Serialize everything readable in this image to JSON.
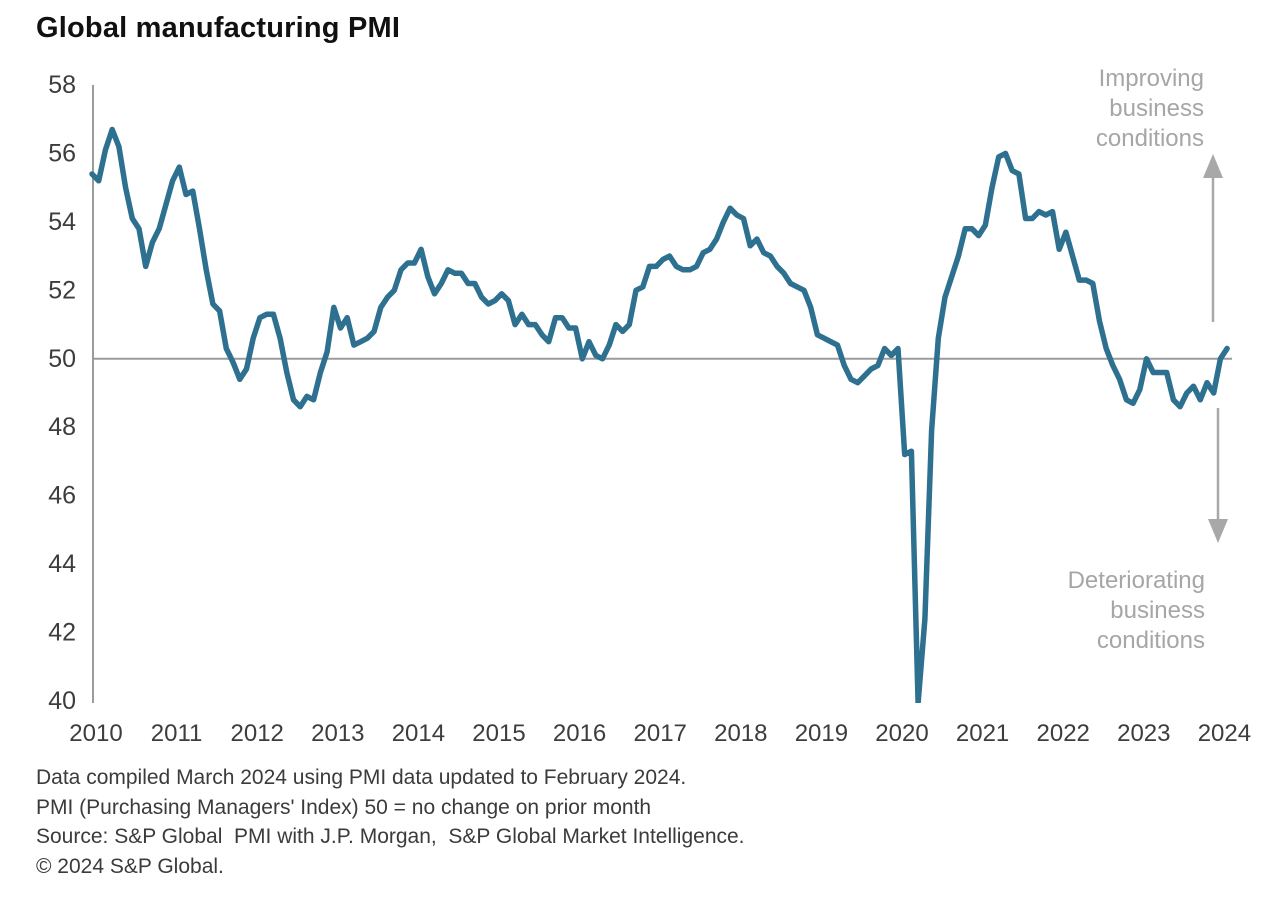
{
  "title": "Global manufacturing PMI",
  "annotations": {
    "improving": "Improving\nbusiness\nconditions",
    "deteriorating": "Deteriorating\nbusiness\nconditions"
  },
  "footer": {
    "line1": "Data compiled March 2024 using PMI data updated to February 2024.",
    "line2": "PMI (Purchasing Managers' Index) 50 = no change on prior month",
    "line3": "Source: S&P Global  PMI with J.P. Morgan,  S&P Global Market Intelligence.",
    "line4": "© 2024 S&P Global."
  },
  "colors": {
    "line": "#2e708f",
    "axis": "#9b9b9b",
    "gridline": "#9b9b9b",
    "arrow": "#a8a8a8",
    "annotation": "#a6a6a6",
    "title": "#111111",
    "tick_label": "#3d3d3d",
    "footer_text": "#3b3b3b"
  },
  "chart_data": {
    "type": "line",
    "title": "Global manufacturing PMI",
    "xlabel": "",
    "ylabel": "PMI (Purchasing Managers' Index), 50 = no change on prior month",
    "x_range": "Jan 2010 - Feb 2024",
    "frequency": "monthly",
    "ylim": [
      40,
      58
    ],
    "y_ticks": [
      58,
      56,
      54,
      52,
      50,
      48,
      46,
      44,
      42,
      40
    ],
    "x_tick_labels": [
      "2010",
      "2011",
      "2012",
      "2013",
      "2014",
      "2015",
      "2016",
      "2017",
      "2018",
      "2019",
      "2020",
      "2021",
      "2022",
      "2023",
      "2024"
    ],
    "baseline_value": 50,
    "grid": "single horizontal reference line at 50",
    "legend_position": "none",
    "series": [
      {
        "name": "Global Manufacturing PMI",
        "start": "2010-01",
        "end": "2024-02",
        "values": [
          55.4,
          55.2,
          56.1,
          56.7,
          56.2,
          55.0,
          54.1,
          53.8,
          52.7,
          53.4,
          53.8,
          54.5,
          55.2,
          55.6,
          54.8,
          54.9,
          53.8,
          52.6,
          51.6,
          51.4,
          50.3,
          49.9,
          49.4,
          49.7,
          50.6,
          51.2,
          51.3,
          51.3,
          50.6,
          49.6,
          48.8,
          48.6,
          48.9,
          48.8,
          49.6,
          50.2,
          51.5,
          50.9,
          51.2,
          50.4,
          50.5,
          50.6,
          50.8,
          51.5,
          51.8,
          52.0,
          52.6,
          52.8,
          52.8,
          53.2,
          52.4,
          51.9,
          52.2,
          52.6,
          52.5,
          52.5,
          52.2,
          52.2,
          51.8,
          51.6,
          51.7,
          51.9,
          51.7,
          51.0,
          51.3,
          51.0,
          51.0,
          50.7,
          50.5,
          51.2,
          51.2,
          50.9,
          50.9,
          50.0,
          50.5,
          50.1,
          50.0,
          50.4,
          51.0,
          50.8,
          51.0,
          52.0,
          52.1,
          52.7,
          52.7,
          52.9,
          53.0,
          52.7,
          52.6,
          52.6,
          52.7,
          53.1,
          53.2,
          53.5,
          54.0,
          54.4,
          54.2,
          54.1,
          53.3,
          53.5,
          53.1,
          53.0,
          52.7,
          52.5,
          52.2,
          52.1,
          52.0,
          51.5,
          50.7,
          50.6,
          50.5,
          50.4,
          49.8,
          49.4,
          49.3,
          49.5,
          49.7,
          49.8,
          50.3,
          50.1,
          50.3,
          47.2,
          47.3,
          39.6,
          42.4,
          47.9,
          50.6,
          51.8,
          52.4,
          53.0,
          53.8,
          53.8,
          53.6,
          53.9,
          55.0,
          55.9,
          56.0,
          55.5,
          55.4,
          54.1,
          54.1,
          54.3,
          54.2,
          54.3,
          53.2,
          53.7,
          53.0,
          52.3,
          52.3,
          52.2,
          51.1,
          50.3,
          49.8,
          49.4,
          48.8,
          48.7,
          49.1,
          50.0,
          49.6,
          49.6,
          49.6,
          48.8,
          48.6,
          49.0,
          49.2,
          48.8,
          49.3,
          49.0,
          50.0,
          50.3
        ]
      }
    ],
    "annotations": [
      {
        "text": "Improving business conditions",
        "direction": "up-arrow",
        "position": "upper right"
      },
      {
        "text": "Deteriorating business conditions",
        "direction": "down-arrow",
        "position": "lower right"
      }
    ]
  }
}
